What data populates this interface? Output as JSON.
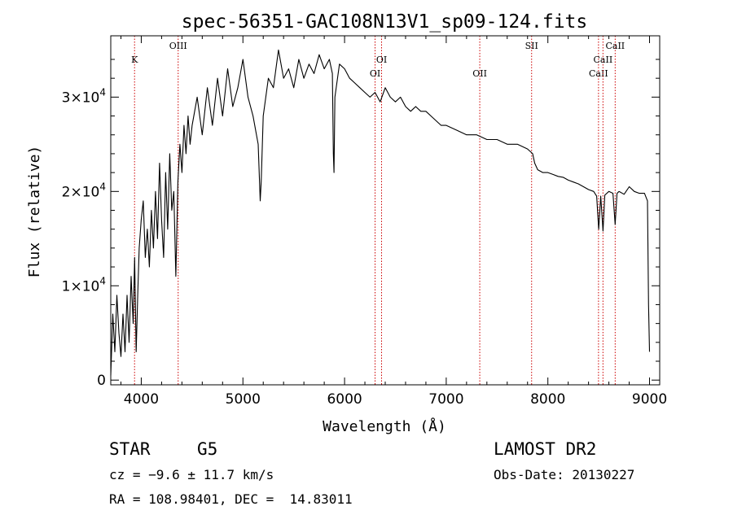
{
  "chart_data": {
    "type": "line",
    "title": "spec-56351-GAC108N13V1_sp09-124.fits",
    "xlabel": "Wavelength (Å)",
    "ylabel": "Flux (relative)",
    "xlim": [
      3700,
      9100
    ],
    "ylim": [
      -500,
      36500
    ],
    "x_ticks": [
      4000,
      5000,
      6000,
      7000,
      8000,
      9000
    ],
    "x_tick_labels": [
      "4000",
      "5000",
      "6000",
      "7000",
      "8000",
      "9000"
    ],
    "y_ticks": [
      0,
      10000,
      20000,
      30000
    ],
    "y_tick_labels": [
      {
        "mantissa": "0",
        "exp": ""
      },
      {
        "mantissa": "1×10",
        "exp": "4"
      },
      {
        "mantissa": "2×10",
        "exp": "4"
      },
      {
        "mantissa": "3×10",
        "exp": "4"
      }
    ],
    "series": [
      {
        "name": "flux",
        "x": [
          3700,
          3720,
          3740,
          3760,
          3780,
          3800,
          3820,
          3840,
          3860,
          3880,
          3900,
          3920,
          3935,
          3950,
          3965,
          3980,
          4000,
          4020,
          4040,
          4060,
          4080,
          4100,
          4120,
          4140,
          4160,
          4180,
          4200,
          4220,
          4240,
          4260,
          4280,
          4300,
          4320,
          4340,
          4360,
          4380,
          4400,
          4420,
          4440,
          4460,
          4480,
          4500,
          4550,
          4600,
          4650,
          4700,
          4750,
          4800,
          4850,
          4900,
          4950,
          5000,
          5050,
          5100,
          5150,
          5170,
          5180,
          5200,
          5250,
          5300,
          5350,
          5400,
          5450,
          5500,
          5550,
          5600,
          5650,
          5700,
          5750,
          5800,
          5850,
          5880,
          5890,
          5896,
          5905,
          5950,
          6000,
          6050,
          6100,
          6150,
          6200,
          6250,
          6300,
          6350,
          6400,
          6450,
          6500,
          6550,
          6600,
          6650,
          6700,
          6750,
          6800,
          6850,
          6900,
          6950,
          7000,
          7100,
          7200,
          7300,
          7400,
          7500,
          7600,
          7700,
          7800,
          7850,
          7870,
          7900,
          7950,
          8000,
          8050,
          8100,
          8150,
          8200,
          8250,
          8300,
          8350,
          8400,
          8450,
          8480,
          8500,
          8520,
          8542,
          8560,
          8600,
          8640,
          8662,
          8680,
          8700,
          8750,
          8800,
          8850,
          8900,
          8950,
          8980,
          8990,
          9000
        ],
        "y": [
          500,
          7000,
          3000,
          9000,
          5000,
          2500,
          7000,
          3000,
          9000,
          4000,
          11000,
          6000,
          13000,
          3000,
          9000,
          14000,
          17000,
          19000,
          13000,
          16000,
          12000,
          18000,
          14000,
          20000,
          15000,
          23000,
          17000,
          13000,
          22000,
          16000,
          24000,
          18000,
          20000,
          11000,
          21000,
          25000,
          22000,
          27000,
          24000,
          28000,
          25000,
          27000,
          30000,
          26000,
          31000,
          27000,
          32000,
          28000,
          33000,
          29000,
          31000,
          34000,
          30000,
          28000,
          25000,
          19000,
          21000,
          28000,
          32000,
          31000,
          35000,
          32000,
          33000,
          31000,
          34000,
          32000,
          33500,
          32500,
          34500,
          33000,
          34000,
          32500,
          24000,
          22000,
          30000,
          33500,
          33000,
          32000,
          31500,
          31000,
          30500,
          30000,
          30500,
          29500,
          31000,
          30000,
          29500,
          30000,
          29000,
          28500,
          29000,
          28500,
          28500,
          28000,
          27500,
          27000,
          27000,
          26500,
          26000,
          26000,
          25500,
          25500,
          25000,
          25000,
          24500,
          24000,
          23000,
          22300,
          22000,
          22000,
          21800,
          21600,
          21500,
          21200,
          21000,
          20800,
          20500,
          20200,
          20000,
          19500,
          16000,
          19500,
          15800,
          19600,
          20000,
          19800,
          16500,
          19800,
          20000,
          19700,
          20500,
          20000,
          19800,
          19800,
          19000,
          8000,
          3000
        ]
      }
    ],
    "lines": [
      {
        "label": "K",
        "wavelength": 3934,
        "row": 0
      },
      {
        "label": "OIII",
        "wavelength": 4363,
        "row": 1
      },
      {
        "label": "OI",
        "wavelength": 6300,
        "row": 3
      },
      {
        "label": "OI",
        "wavelength": 6364,
        "row": 0
      },
      {
        "label": "OII",
        "wavelength": 7330,
        "row": 3
      },
      {
        "label": "SII",
        "wavelength": 7840,
        "row": 1
      },
      {
        "label": "CaII",
        "wavelength": 8498,
        "row": 3
      },
      {
        "label": "CaII",
        "wavelength": 8542,
        "row": 0
      },
      {
        "label": "CaII",
        "wavelength": 8662,
        "row": 1
      }
    ],
    "line_color": "#cc0000",
    "grid": false
  },
  "info": {
    "class": "STAR",
    "subclass": "G5",
    "survey": "LAMOST DR2",
    "cz": "cz = −9.6 ± 11.7 km/s",
    "obs_date": "Obs-Date: 20130227",
    "coords": "RA = 108.98401, DEC =  14.83011"
  }
}
